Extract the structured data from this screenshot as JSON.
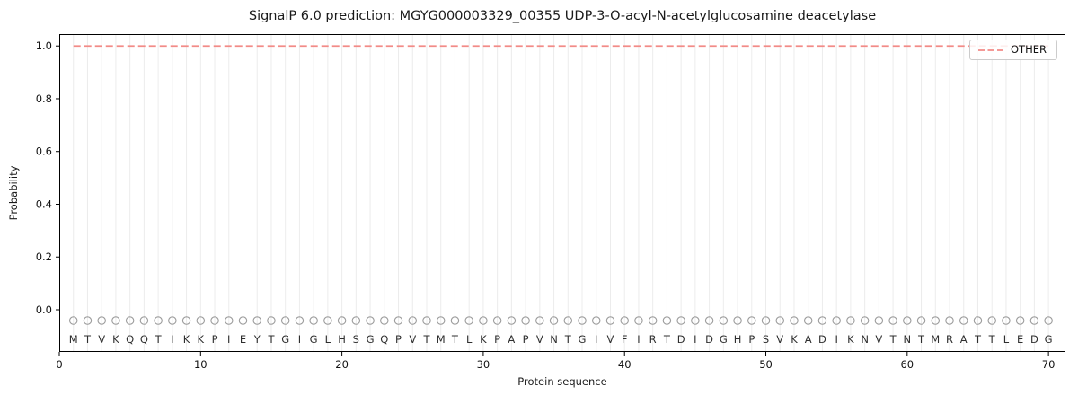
{
  "legend": {
    "position": "upper-right",
    "items": [
      {
        "label": "OTHER",
        "line_color": "#f28b87",
        "line_style": "dashed"
      }
    ]
  },
  "chart_data": {
    "type": "line",
    "title": "SignalP 6.0 prediction: MGYG000003329_00355 UDP-3-O-acyl-N-acetylglucosamine deacetylase",
    "xlabel": "Protein sequence",
    "ylabel": "Probability",
    "xlim": [
      0,
      71.2
    ],
    "ylim": [
      -0.16,
      1.045
    ],
    "x_ticks": [
      0,
      10,
      20,
      30,
      40,
      50,
      60,
      70
    ],
    "y_ticks": [
      0.0,
      0.2,
      0.4,
      0.6,
      0.8,
      1.0
    ],
    "grid": "faint vertical gridline at every residue position, no horizontal gridlines",
    "legend_position": "upper-right",
    "sequence": "MTVKQQTIKKPIEYTGIGLHSGQPVTMTLKPAPVNTGIVFIRTDIDGHPSVKADIKNVTNTMRATTLEDG",
    "sequence_length": 70,
    "series": [
      {
        "name": "OTHER",
        "style": "dashed",
        "color": "#f28b87",
        "constant_y": 1.0,
        "x_start": 1,
        "x_end": 70
      }
    ],
    "marker_row": {
      "symbol": "open-circle",
      "y": -0.041,
      "color": "#9c9c9c"
    },
    "letter_row": {
      "y": -0.112,
      "color": "#2e2e2e"
    },
    "colors": {
      "grid": "#ececec",
      "spine": "#000000",
      "tick_label": "#111111"
    }
  }
}
